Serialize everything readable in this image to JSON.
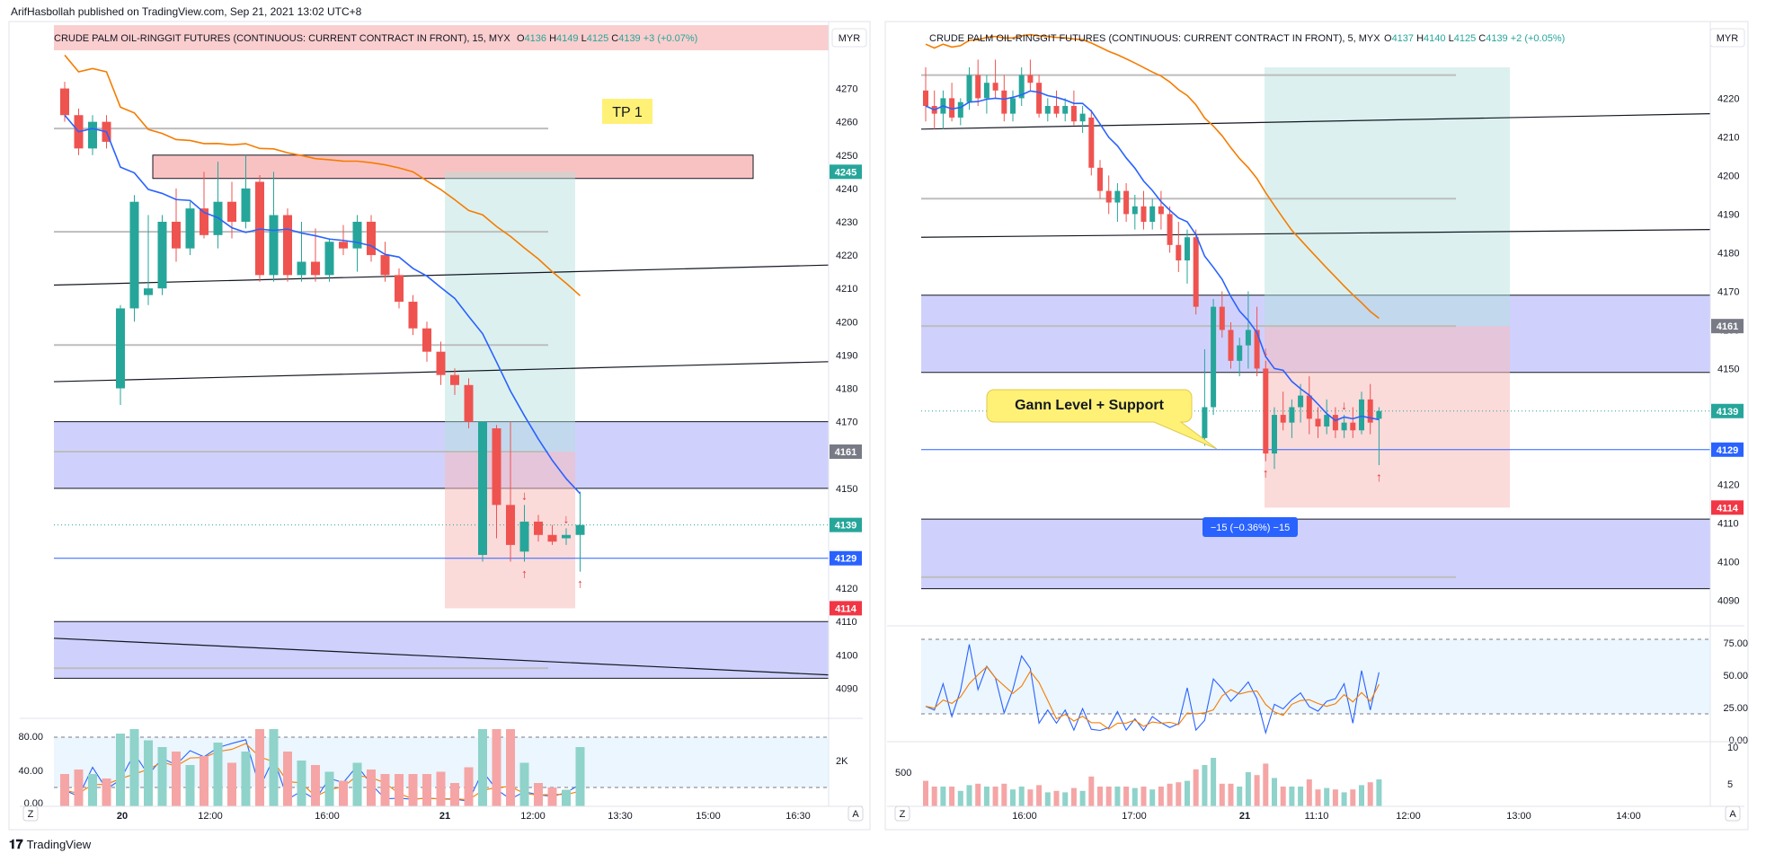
{
  "publisher": "ArifHasbollah published on TradingView.com, Sep 21, 2021 13:02 UTC+8",
  "brand": "TradingView",
  "chart_data": [
    {
      "type": "candlestick",
      "title": "CRUDE PALM OIL-RINGGIT FUTURES (CONTINUOUS: CURRENT CONTRACT IN FRONT), 15, MYX",
      "ohlc_header": {
        "o_label": "O",
        "o": "4136",
        "h_label": "H",
        "h": "4149",
        "l_label": "L",
        "l": "4125",
        "c_label": "C",
        "c": "4139",
        "change": "+3 (+0.07%)"
      },
      "currency": "MYR",
      "y_ticks": [
        4270,
        4260,
        4250,
        4240,
        4230,
        4220,
        4210,
        4200,
        4190,
        4180,
        4170,
        4160,
        4150,
        4140,
        4130,
        4120,
        4110,
        4100,
        4090
      ],
      "x_ticks": [
        "20",
        "12:00",
        "16:00",
        "21",
        "12:00",
        "13:30",
        "15:00",
        "16:30"
      ],
      "ylim": [
        4085,
        4275
      ],
      "price_labels": [
        {
          "value": 4245,
          "text": "4245",
          "color": "#26a69a"
        },
        {
          "value": 4161,
          "text": "4161",
          "color": "#787b86"
        },
        {
          "value": 4139,
          "text": "4139",
          "color": "#26a69a"
        },
        {
          "value": 4129,
          "text": "4129",
          "color": "#2962ff"
        },
        {
          "value": 4114,
          "text": "4114",
          "color": "#f23645"
        }
      ],
      "annotation": "TP 1",
      "candles": [
        [
          4270,
          4272,
          4260,
          4262
        ],
        [
          4262,
          4264,
          4250,
          4252
        ],
        [
          4252,
          4262,
          4250,
          4260
        ],
        [
          4260,
          4262,
          4252,
          4254
        ],
        [
          4180,
          4205,
          4175,
          4204
        ],
        [
          4204,
          4238,
          4200,
          4236
        ],
        [
          4208,
          4232,
          4205,
          4210
        ],
        [
          4210,
          4232,
          4208,
          4230
        ],
        [
          4230,
          4240,
          4218,
          4222
        ],
        [
          4222,
          4236,
          4220,
          4234
        ],
        [
          4234,
          4245,
          4225,
          4226
        ],
        [
          4226,
          4248,
          4222,
          4236
        ],
        [
          4236,
          4242,
          4225,
          4230
        ],
        [
          4230,
          4250,
          4228,
          4240
        ],
        [
          4242,
          4244,
          4212,
          4214
        ],
        [
          4214,
          4245,
          4212,
          4232
        ],
        [
          4232,
          4234,
          4212,
          4214
        ],
        [
          4214,
          4230,
          4212,
          4218
        ],
        [
          4218,
          4228,
          4212,
          4214
        ],
        [
          4214,
          4225,
          4212,
          4224
        ],
        [
          4224,
          4229,
          4220,
          4222
        ],
        [
          4222,
          4232,
          4215,
          4230
        ],
        [
          4230,
          4232,
          4218,
          4220
        ],
        [
          4220,
          4224,
          4212,
          4214
        ],
        [
          4214,
          4216,
          4204,
          4206
        ],
        [
          4206,
          4208,
          4196,
          4198
        ],
        [
          4198,
          4200,
          4188,
          4191
        ],
        [
          4191,
          4194,
          4181,
          4184
        ],
        [
          4184,
          4186,
          4178,
          4181
        ],
        [
          4181,
          4183,
          4168,
          4170
        ],
        [
          4130,
          4170,
          4128,
          4170
        ],
        [
          4168,
          4169,
          4135,
          4145
        ],
        [
          4145,
          4170,
          4128,
          4133
        ],
        [
          4131,
          4145,
          4128,
          4140
        ],
        [
          4140,
          4142,
          4134,
          4136
        ],
        [
          4136,
          4139,
          4133,
          4134
        ],
        [
          4135,
          4138,
          4133,
          4136
        ],
        [
          4136,
          4149,
          4125,
          4139
        ]
      ],
      "zones": [
        {
          "from": 4150,
          "to": 4170,
          "kind": "demand"
        },
        {
          "from": 4093,
          "to": 4110,
          "kind": "demand"
        },
        {
          "from": 4243,
          "to": 4250,
          "kind": "supply"
        }
      ],
      "position": {
        "entry": 4161,
        "target": 4245,
        "stop": 4114
      },
      "oscillator_ticks": [
        "80.00",
        "40.00",
        "0.00"
      ],
      "volume_tick": "2K"
    },
    {
      "type": "candlestick",
      "title": "CRUDE PALM OIL-RINGGIT FUTURES (CONTINUOUS: CURRENT CONTRACT IN FRONT), 5, MYX",
      "ohlc_header": {
        "o_label": "O",
        "o": "4137",
        "h_label": "H",
        "h": "4140",
        "l_label": "L",
        "l": "4125",
        "c_label": "C",
        "c": "4139",
        "change": "+2 (+0.05%)"
      },
      "currency": "MYR",
      "y_ticks": [
        4220,
        4210,
        4200,
        4190,
        4180,
        4170,
        4160,
        4150,
        4140,
        4130,
        4120,
        4110,
        4100,
        4090
      ],
      "x_ticks": [
        "16:00",
        "17:00",
        "21",
        "11:10",
        "12:00",
        "13:00",
        "14:00"
      ],
      "ylim": [
        4085,
        4228
      ],
      "price_labels": [
        {
          "value": 4161,
          "text": "4161",
          "color": "#787b86"
        },
        {
          "value": 4139,
          "text": "4139",
          "color": "#26a69a"
        },
        {
          "value": 4129,
          "text": "4129",
          "color": "#2962ff"
        },
        {
          "value": 4114,
          "text": "4114",
          "color": "#f23645"
        }
      ],
      "annotation": "Gann Level + Support",
      "measure_label": "−15 (−0.36%) −15",
      "candles": [
        [
          4222,
          4228,
          4214,
          4218
        ],
        [
          4218,
          4222,
          4212,
          4216
        ],
        [
          4216,
          4222,
          4212,
          4220
        ],
        [
          4220,
          4224,
          4214,
          4215
        ],
        [
          4215,
          4220,
          4213,
          4219
        ],
        [
          4219,
          4228,
          4217,
          4226
        ],
        [
          4226,
          4230,
          4218,
          4220
        ],
        [
          4220,
          4226,
          4216,
          4224
        ],
        [
          4224,
          4230,
          4220,
          4222
        ],
        [
          4222,
          4226,
          4214,
          4216
        ],
        [
          4216,
          4222,
          4214,
          4220
        ],
        [
          4220,
          4228,
          4218,
          4226
        ],
        [
          4226,
          4230,
          4222,
          4224
        ],
        [
          4224,
          4226,
          4215,
          4216
        ],
        [
          4216,
          4220,
          4214,
          4218
        ],
        [
          4218,
          4222,
          4215,
          4216
        ],
        [
          4216,
          4220,
          4214,
          4218
        ],
        [
          4218,
          4222,
          4213,
          4214
        ],
        [
          4214,
          4218,
          4211,
          4216
        ],
        [
          4215,
          4217,
          4200,
          4202
        ],
        [
          4202,
          4204,
          4194,
          4196
        ],
        [
          4196,
          4200,
          4190,
          4193
        ],
        [
          4193,
          4198,
          4188,
          4196
        ],
        [
          4196,
          4198,
          4188,
          4190
        ],
        [
          4190,
          4195,
          4186,
          4192
        ],
        [
          4192,
          4196,
          4186,
          4188
        ],
        [
          4188,
          4194,
          4186,
          4192
        ],
        [
          4192,
          4196,
          4186,
          4190
        ],
        [
          4190,
          4192,
          4180,
          4182
        ],
        [
          4182,
          4188,
          4175,
          4178
        ],
        [
          4178,
          4186,
          4172,
          4184
        ],
        [
          4184,
          4186,
          4164,
          4166
        ],
        [
          4132,
          4155,
          4130,
          4140
        ],
        [
          4140,
          4168,
          4138,
          4166
        ],
        [
          4166,
          4170,
          4158,
          4160
        ],
        [
          4160,
          4162,
          4150,
          4152
        ],
        [
          4152,
          4158,
          4148,
          4156
        ],
        [
          4156,
          4170,
          4150,
          4160
        ],
        [
          4160,
          4166,
          4148,
          4150
        ],
        [
          4150,
          4152,
          4126,
          4128
        ],
        [
          4128,
          4140,
          4124,
          4138
        ],
        [
          4138,
          4144,
          4134,
          4136
        ],
        [
          4136,
          4142,
          4132,
          4140
        ],
        [
          4140,
          4146,
          4136,
          4143
        ],
        [
          4143,
          4148,
          4133,
          4137
        ],
        [
          4137,
          4140,
          4132,
          4135
        ],
        [
          4135,
          4142,
          4133,
          4138
        ],
        [
          4138,
          4140,
          4132,
          4134
        ],
        [
          4134,
          4138,
          4132,
          4136
        ],
        [
          4136,
          4140,
          4132,
          4134
        ],
        [
          4134,
          4144,
          4133,
          4142
        ],
        [
          4142,
          4146,
          4133,
          4136
        ],
        [
          4137,
          4140,
          4125,
          4139
        ]
      ],
      "zones": [
        {
          "from": 4149,
          "to": 4169,
          "kind": "demand"
        },
        {
          "from": 4093,
          "to": 4111,
          "kind": "demand"
        }
      ],
      "position": {
        "entry": 4161,
        "target": 4245,
        "stop": 4114
      },
      "oscillator_ticks": [
        "75.00",
        "50.00",
        "25.00",
        "0.00"
      ],
      "volume_ticks": [
        "500",
        "10",
        "5"
      ]
    }
  ]
}
